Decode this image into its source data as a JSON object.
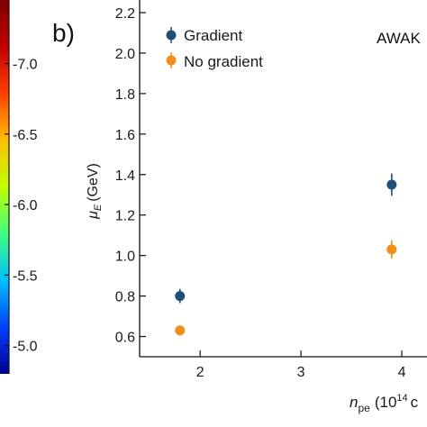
{
  "colorbar": {
    "ticks": [
      "-7.0",
      "-6.5",
      "-6.0",
      "-5.5",
      "-5.0"
    ],
    "tick_values": [
      -7.0,
      -6.5,
      -6.0,
      -5.5,
      -5.0
    ],
    "range": [
      -7.45,
      -4.8
    ],
    "colors": [
      "#00008f",
      "#0040ff",
      "#00c0ff",
      "#40ff80",
      "#c0ff00",
      "#ffc000",
      "#ff4000",
      "#c00000",
      "#800000"
    ]
  },
  "chart_data": {
    "type": "scatter",
    "panel_label": "b)",
    "annotation": "AWAK",
    "xlabel_main": "n",
    "xlabel_sub": "pe",
    "xlabel_rest": "(10",
    "xlabel_exp": "14",
    "xlabel_tail": "c",
    "ylabel_main": "μ",
    "ylabel_sub": "E",
    "ylabel_rest": "(GeV)",
    "xlim": [
      1.4,
      4.5
    ],
    "ylim": [
      0.5,
      2.2
    ],
    "xticks": [
      2,
      3,
      4
    ],
    "xtick_labels": [
      "2",
      "3",
      "4"
    ],
    "yticks": [
      0.6,
      0.8,
      1.0,
      1.2,
      1.4,
      1.6,
      1.8,
      2.0,
      2.2
    ],
    "ytick_labels": [
      "0.6",
      "0.8",
      "1.0",
      "1.2",
      "1.4",
      "1.6",
      "1.8",
      "2.0",
      "2.2"
    ],
    "legend_position": "top-left",
    "grid": false,
    "series": [
      {
        "name": "Gradient",
        "color": "#1f4e79",
        "x": [
          1.8,
          3.9
        ],
        "y": [
          0.8,
          1.35
        ],
        "yerr": [
          0.035,
          0.055
        ]
      },
      {
        "name": "No gradient",
        "color": "#f28e1c",
        "x": [
          1.8,
          3.9
        ],
        "y": [
          0.63,
          1.03
        ],
        "yerr": [
          0.025,
          0.045
        ]
      }
    ]
  }
}
